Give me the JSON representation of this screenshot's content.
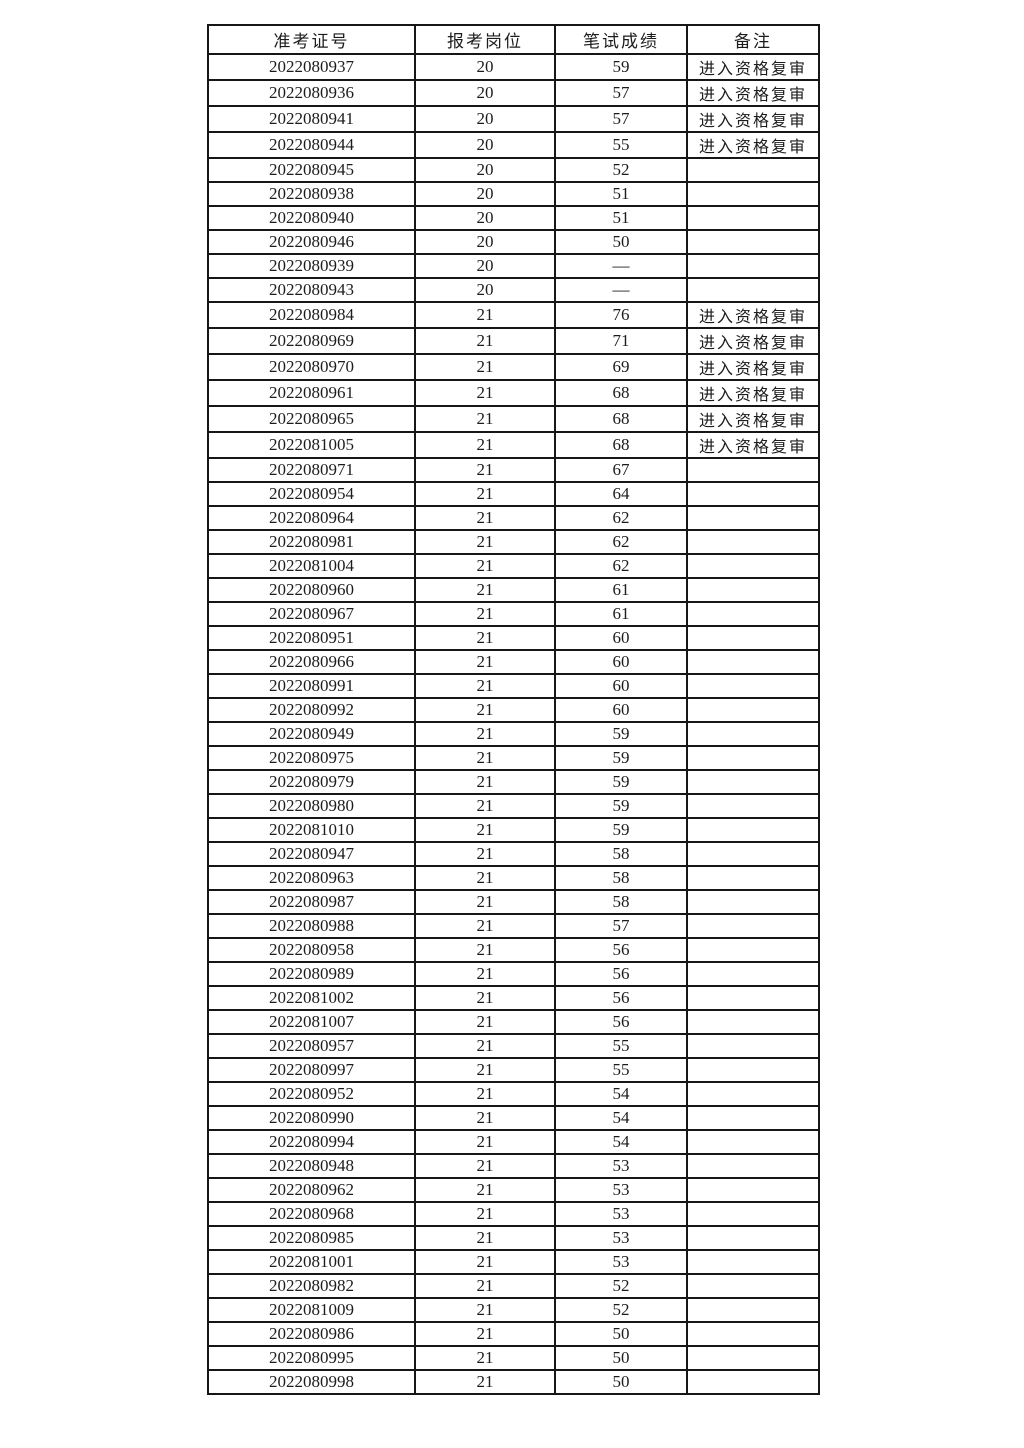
{
  "table": {
    "headers": [
      "准考证号",
      "报考岗位",
      "笔试成绩",
      "备注"
    ],
    "rows": [
      [
        "2022080937",
        "20",
        "59",
        "进入资格复审"
      ],
      [
        "2022080936",
        "20",
        "57",
        "进入资格复审"
      ],
      [
        "2022080941",
        "20",
        "57",
        "进入资格复审"
      ],
      [
        "2022080944",
        "20",
        "55",
        "进入资格复审"
      ],
      [
        "2022080945",
        "20",
        "52",
        ""
      ],
      [
        "2022080938",
        "20",
        "51",
        ""
      ],
      [
        "2022080940",
        "20",
        "51",
        ""
      ],
      [
        "2022080946",
        "20",
        "50",
        ""
      ],
      [
        "2022080939",
        "20",
        "—",
        ""
      ],
      [
        "2022080943",
        "20",
        "—",
        ""
      ],
      [
        "2022080984",
        "21",
        "76",
        "进入资格复审"
      ],
      [
        "2022080969",
        "21",
        "71",
        "进入资格复审"
      ],
      [
        "2022080970",
        "21",
        "69",
        "进入资格复审"
      ],
      [
        "2022080961",
        "21",
        "68",
        "进入资格复审"
      ],
      [
        "2022080965",
        "21",
        "68",
        "进入资格复审"
      ],
      [
        "2022081005",
        "21",
        "68",
        "进入资格复审"
      ],
      [
        "2022080971",
        "21",
        "67",
        ""
      ],
      [
        "2022080954",
        "21",
        "64",
        ""
      ],
      [
        "2022080964",
        "21",
        "62",
        ""
      ],
      [
        "2022080981",
        "21",
        "62",
        ""
      ],
      [
        "2022081004",
        "21",
        "62",
        ""
      ],
      [
        "2022080960",
        "21",
        "61",
        ""
      ],
      [
        "2022080967",
        "21",
        "61",
        ""
      ],
      [
        "2022080951",
        "21",
        "60",
        ""
      ],
      [
        "2022080966",
        "21",
        "60",
        ""
      ],
      [
        "2022080991",
        "21",
        "60",
        ""
      ],
      [
        "2022080992",
        "21",
        "60",
        ""
      ],
      [
        "2022080949",
        "21",
        "59",
        ""
      ],
      [
        "2022080975",
        "21",
        "59",
        ""
      ],
      [
        "2022080979",
        "21",
        "59",
        ""
      ],
      [
        "2022080980",
        "21",
        "59",
        ""
      ],
      [
        "2022081010",
        "21",
        "59",
        ""
      ],
      [
        "2022080947",
        "21",
        "58",
        ""
      ],
      [
        "2022080963",
        "21",
        "58",
        ""
      ],
      [
        "2022080987",
        "21",
        "58",
        ""
      ],
      [
        "2022080988",
        "21",
        "57",
        ""
      ],
      [
        "2022080958",
        "21",
        "56",
        ""
      ],
      [
        "2022080989",
        "21",
        "56",
        ""
      ],
      [
        "2022081002",
        "21",
        "56",
        ""
      ],
      [
        "2022081007",
        "21",
        "56",
        ""
      ],
      [
        "2022080957",
        "21",
        "55",
        ""
      ],
      [
        "2022080997",
        "21",
        "55",
        ""
      ],
      [
        "2022080952",
        "21",
        "54",
        ""
      ],
      [
        "2022080990",
        "21",
        "54",
        ""
      ],
      [
        "2022080994",
        "21",
        "54",
        ""
      ],
      [
        "2022080948",
        "21",
        "53",
        ""
      ],
      [
        "2022080962",
        "21",
        "53",
        ""
      ],
      [
        "2022080968",
        "21",
        "53",
        ""
      ],
      [
        "2022080985",
        "21",
        "53",
        ""
      ],
      [
        "2022081001",
        "21",
        "53",
        ""
      ],
      [
        "2022080982",
        "21",
        "52",
        ""
      ],
      [
        "2022081009",
        "21",
        "52",
        ""
      ],
      [
        "2022080986",
        "21",
        "50",
        ""
      ],
      [
        "2022080995",
        "21",
        "50",
        ""
      ],
      [
        "2022080998",
        "21",
        "50",
        ""
      ]
    ]
  }
}
